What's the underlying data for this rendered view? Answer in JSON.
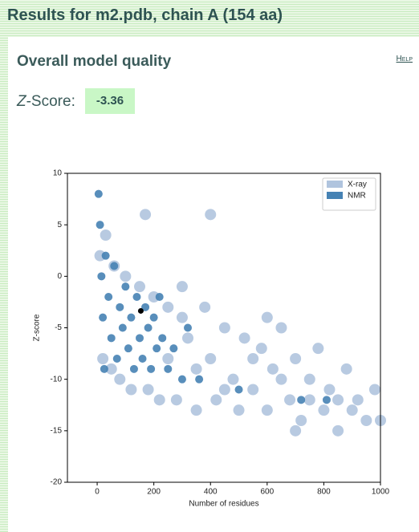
{
  "header": {
    "title": "Results for m2.pdb, chain A (154 aa)"
  },
  "section": {
    "title": "Overall model quality",
    "help": "Help",
    "z_label": "Z-Score:",
    "z_value": "-3.36"
  },
  "chart_data": {
    "type": "scatter",
    "xlabel": "Number of residues",
    "ylabel": "Z-score",
    "xlim": [
      -105,
      1000
    ],
    "ylim": [
      -20,
      10
    ],
    "xticks": [
      0,
      200,
      400,
      600,
      800,
      1000
    ],
    "yticks": [
      -20,
      -15,
      -10,
      -5,
      0,
      5,
      10
    ],
    "legend": "upper right",
    "series": [
      {
        "name": "X-ray",
        "color": "#b0c4de",
        "x": [
          10,
          20,
          30,
          50,
          60,
          80,
          100,
          120,
          150,
          180,
          200,
          220,
          250,
          280,
          300,
          320,
          350,
          380,
          400,
          420,
          450,
          480,
          500,
          520,
          550,
          580,
          600,
          620,
          650,
          680,
          700,
          720,
          750,
          780,
          800,
          820,
          850,
          880,
          900,
          920,
          950,
          980,
          1000,
          250,
          350,
          450,
          550,
          650,
          750,
          170,
          400,
          300,
          700,
          850,
          600
        ],
        "values": [
          2,
          -8,
          4,
          -9,
          1,
          -10,
          0,
          -11,
          -1,
          -11,
          -2,
          -12,
          -3,
          -12,
          -4,
          -6,
          -13,
          -3,
          -8,
          -12,
          -5,
          -10,
          -13,
          -6,
          -11,
          -7,
          -13,
          -9,
          -5,
          -12,
          -8,
          -14,
          -10,
          -7,
          -13,
          -11,
          -15,
          -9,
          -13,
          -12,
          -14,
          -11,
          -14,
          -8,
          -9,
          -11,
          -8,
          -10,
          -12,
          6,
          6,
          -1,
          -15,
          -12,
          -4
        ]
      },
      {
        "name": "NMR",
        "color": "#4682b4",
        "x": [
          5,
          10,
          15,
          20,
          25,
          30,
          40,
          50,
          60,
          70,
          80,
          90,
          100,
          110,
          120,
          130,
          140,
          150,
          160,
          170,
          180,
          190,
          200,
          210,
          220,
          230,
          250,
          270,
          300,
          320,
          360,
          500,
          720,
          810
        ],
        "values": [
          8,
          5,
          0,
          -4,
          -9,
          2,
          -2,
          -6,
          1,
          -8,
          -3,
          -5,
          -1,
          -7,
          -4,
          -9,
          -2,
          -6,
          -8,
          -3,
          -5,
          -9,
          -4,
          -7,
          -2,
          -6,
          -9,
          -7,
          -10,
          -5,
          -10,
          -11,
          -12,
          -12
        ]
      }
    ],
    "point": {
      "x": 154,
      "y": -3.36,
      "color": "#000000"
    }
  }
}
